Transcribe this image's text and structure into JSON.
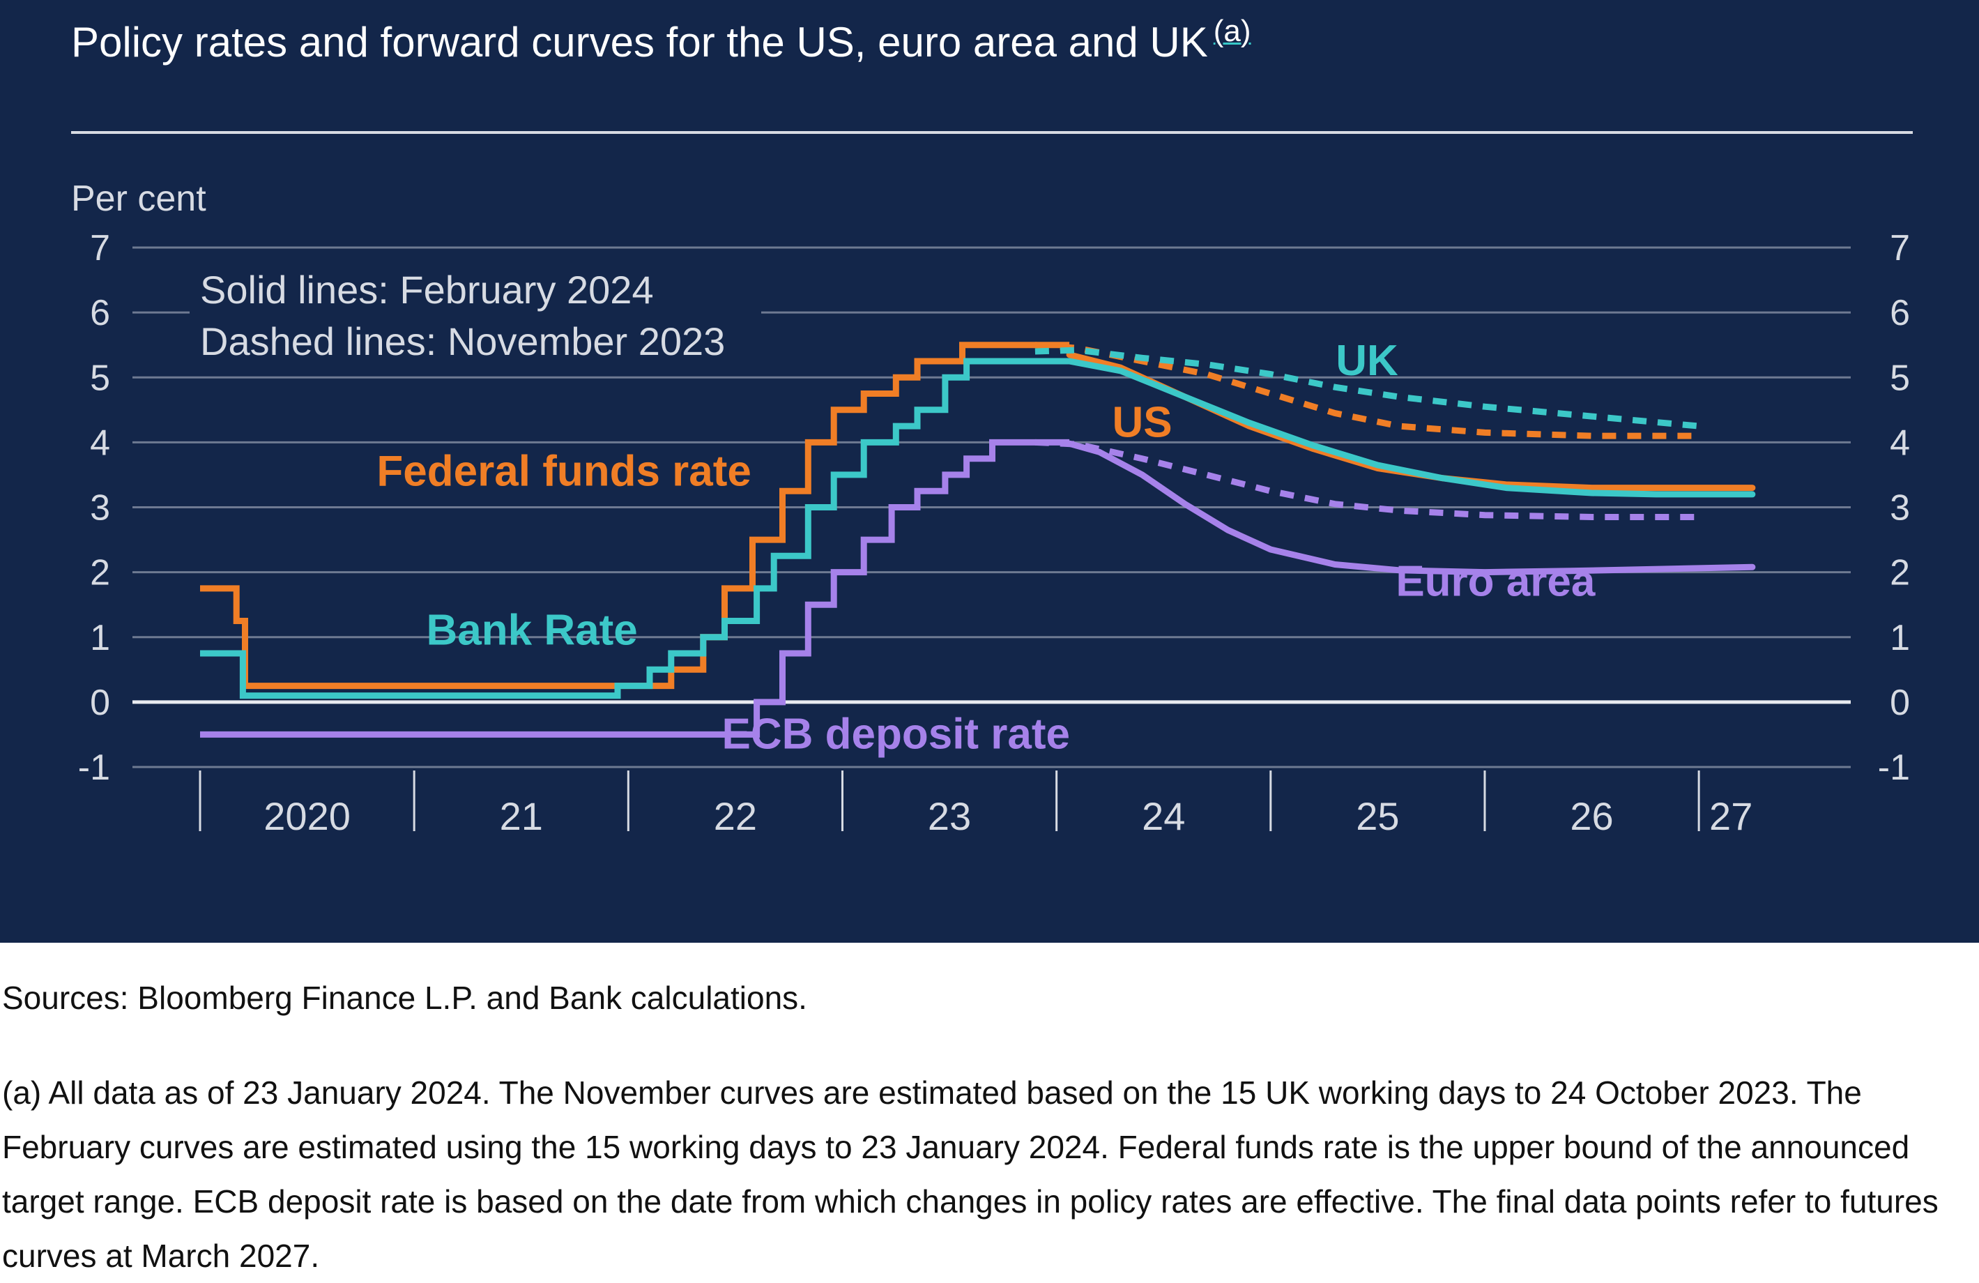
{
  "chart_data": {
    "type": "line",
    "title": "Policy rates and forward curves for the US, euro area and UK",
    "title_footnote_marker": "(a)",
    "ylabel": "Per cent",
    "ylim": [
      -1,
      7
    ],
    "yticks": [
      "7",
      "6",
      "5",
      "4",
      "3",
      "2",
      "1",
      "0",
      "-1"
    ],
    "x_range": [
      2020.0,
      2027.4
    ],
    "x_boundaries": [
      2020.0,
      2021.0,
      2022.0,
      2023.0,
      2024.0,
      2025.0,
      2026.0,
      2027.0
    ],
    "x_tick_labels": [
      {
        "label": "2020",
        "x": 2020.5
      },
      {
        "label": "21",
        "x": 2021.5
      },
      {
        "label": "22",
        "x": 2022.5
      },
      {
        "label": "23",
        "x": 2023.5
      },
      {
        "label": "24",
        "x": 2024.5
      },
      {
        "label": "25",
        "x": 2025.5
      },
      {
        "label": "26",
        "x": 2026.5
      },
      {
        "label": "27",
        "x": 2027.15
      }
    ],
    "legend_note": [
      "Solid lines: February 2024",
      "Dashed lines: November 2023"
    ],
    "colors": {
      "us": "#f07e26",
      "uk": "#3cc8c8",
      "euro": "#a682ea",
      "grid": "#6e7a92",
      "zero": "#e8ebf0",
      "text": "#d7dbe3",
      "background": "#13264a"
    },
    "series": [
      {
        "name": "Federal funds rate",
        "key": "us-history",
        "color_key": "us",
        "style": "step",
        "points": [
          [
            2020.0,
            1.75
          ],
          [
            2020.17,
            1.75
          ],
          [
            2020.17,
            1.25
          ],
          [
            2020.21,
            1.25
          ],
          [
            2020.21,
            0.25
          ],
          [
            2022.2,
            0.25
          ],
          [
            2022.2,
            0.5
          ],
          [
            2022.35,
            0.5
          ],
          [
            2022.35,
            1.0
          ],
          [
            2022.45,
            1.0
          ],
          [
            2022.45,
            1.75
          ],
          [
            2022.58,
            1.75
          ],
          [
            2022.58,
            2.5
          ],
          [
            2022.72,
            2.5
          ],
          [
            2022.72,
            3.25
          ],
          [
            2022.84,
            3.25
          ],
          [
            2022.84,
            4.0
          ],
          [
            2022.96,
            4.0
          ],
          [
            2022.96,
            4.5
          ],
          [
            2023.1,
            4.5
          ],
          [
            2023.1,
            4.75
          ],
          [
            2023.25,
            4.75
          ],
          [
            2023.25,
            5.0
          ],
          [
            2023.35,
            5.0
          ],
          [
            2023.35,
            5.25
          ],
          [
            2023.56,
            5.25
          ],
          [
            2023.56,
            5.5
          ],
          [
            2024.06,
            5.5
          ]
        ]
      },
      {
        "name": "Bank Rate",
        "key": "uk-history",
        "color_key": "uk",
        "style": "step",
        "points": [
          [
            2020.0,
            0.75
          ],
          [
            2020.2,
            0.75
          ],
          [
            2020.2,
            0.1
          ],
          [
            2021.95,
            0.1
          ],
          [
            2021.95,
            0.25
          ],
          [
            2022.1,
            0.25
          ],
          [
            2022.1,
            0.5
          ],
          [
            2022.2,
            0.5
          ],
          [
            2022.2,
            0.75
          ],
          [
            2022.35,
            0.75
          ],
          [
            2022.35,
            1.0
          ],
          [
            2022.45,
            1.0
          ],
          [
            2022.45,
            1.25
          ],
          [
            2022.6,
            1.25
          ],
          [
            2022.6,
            1.75
          ],
          [
            2022.68,
            1.75
          ],
          [
            2022.68,
            2.25
          ],
          [
            2022.84,
            2.25
          ],
          [
            2022.84,
            3.0
          ],
          [
            2022.96,
            3.0
          ],
          [
            2022.96,
            3.5
          ],
          [
            2023.1,
            3.5
          ],
          [
            2023.1,
            4.0
          ],
          [
            2023.25,
            4.0
          ],
          [
            2023.25,
            4.25
          ],
          [
            2023.35,
            4.25
          ],
          [
            2023.35,
            4.5
          ],
          [
            2023.48,
            4.5
          ],
          [
            2023.48,
            5.0
          ],
          [
            2023.58,
            5.0
          ],
          [
            2023.58,
            5.25
          ],
          [
            2024.06,
            5.25
          ]
        ]
      },
      {
        "name": "ECB deposit rate",
        "key": "euro-history",
        "color_key": "euro",
        "style": "step",
        "points": [
          [
            2020.0,
            -0.5
          ],
          [
            2022.6,
            -0.5
          ],
          [
            2022.6,
            0.0
          ],
          [
            2022.72,
            0.0
          ],
          [
            2022.72,
            0.75
          ],
          [
            2022.84,
            0.75
          ],
          [
            2022.84,
            1.5
          ],
          [
            2022.96,
            1.5
          ],
          [
            2022.96,
            2.0
          ],
          [
            2023.1,
            2.0
          ],
          [
            2023.1,
            2.5
          ],
          [
            2023.23,
            2.5
          ],
          [
            2023.23,
            3.0
          ],
          [
            2023.35,
            3.0
          ],
          [
            2023.35,
            3.25
          ],
          [
            2023.48,
            3.25
          ],
          [
            2023.48,
            3.5
          ],
          [
            2023.58,
            3.5
          ],
          [
            2023.58,
            3.75
          ],
          [
            2023.7,
            3.75
          ],
          [
            2023.7,
            4.0
          ],
          [
            2024.06,
            4.0
          ]
        ]
      },
      {
        "name": "US",
        "key": "us-feb",
        "color_key": "us",
        "style": "solid",
        "points": [
          [
            2024.06,
            5.35
          ],
          [
            2024.3,
            5.15
          ],
          [
            2024.6,
            4.7
          ],
          [
            2024.9,
            4.25
          ],
          [
            2025.2,
            3.9
          ],
          [
            2025.5,
            3.6
          ],
          [
            2025.8,
            3.45
          ],
          [
            2026.1,
            3.35
          ],
          [
            2026.5,
            3.3
          ],
          [
            2026.8,
            3.3
          ],
          [
            2027.25,
            3.3
          ]
        ]
      },
      {
        "name": "UK",
        "key": "uk-feb",
        "color_key": "uk",
        "style": "solid",
        "points": [
          [
            2024.06,
            5.25
          ],
          [
            2024.3,
            5.1
          ],
          [
            2024.6,
            4.7
          ],
          [
            2024.9,
            4.3
          ],
          [
            2025.2,
            3.95
          ],
          [
            2025.5,
            3.65
          ],
          [
            2025.8,
            3.45
          ],
          [
            2026.1,
            3.3
          ],
          [
            2026.5,
            3.22
          ],
          [
            2026.8,
            3.2
          ],
          [
            2027.25,
            3.2
          ]
        ]
      },
      {
        "name": "Euro area",
        "key": "euro-feb",
        "color_key": "euro",
        "style": "solid",
        "points": [
          [
            2024.06,
            3.98
          ],
          [
            2024.2,
            3.85
          ],
          [
            2024.4,
            3.5
          ],
          [
            2024.6,
            3.05
          ],
          [
            2024.8,
            2.65
          ],
          [
            2025.0,
            2.35
          ],
          [
            2025.3,
            2.12
          ],
          [
            2025.6,
            2.03
          ],
          [
            2026.0,
            2.0
          ],
          [
            2026.4,
            2.02
          ],
          [
            2027.25,
            2.08
          ]
        ]
      },
      {
        "name": "US (November 2023)",
        "key": "us-nov",
        "color_key": "us",
        "style": "dashed",
        "points": [
          [
            2023.9,
            5.5
          ],
          [
            2024.1,
            5.45
          ],
          [
            2024.4,
            5.25
          ],
          [
            2024.7,
            5.05
          ],
          [
            2025.0,
            4.75
          ],
          [
            2025.3,
            4.45
          ],
          [
            2025.6,
            4.25
          ],
          [
            2026.0,
            4.15
          ],
          [
            2026.5,
            4.1
          ],
          [
            2027.0,
            4.1
          ]
        ]
      },
      {
        "name": "UK (November 2023)",
        "key": "uk-nov",
        "color_key": "uk",
        "style": "dashed",
        "points": [
          [
            2023.9,
            5.4
          ],
          [
            2024.1,
            5.42
          ],
          [
            2024.4,
            5.3
          ],
          [
            2024.7,
            5.2
          ],
          [
            2025.0,
            5.05
          ],
          [
            2025.3,
            4.85
          ],
          [
            2025.6,
            4.7
          ],
          [
            2026.0,
            4.55
          ],
          [
            2026.5,
            4.4
          ],
          [
            2027.0,
            4.25
          ]
        ]
      },
      {
        "name": "Euro area (November 2023)",
        "key": "euro-nov",
        "color_key": "euro",
        "style": "dashed",
        "points": [
          [
            2023.9,
            4.0
          ],
          [
            2024.1,
            3.97
          ],
          [
            2024.4,
            3.75
          ],
          [
            2024.7,
            3.5
          ],
          [
            2025.0,
            3.25
          ],
          [
            2025.3,
            3.05
          ],
          [
            2025.6,
            2.95
          ],
          [
            2026.0,
            2.88
          ],
          [
            2026.5,
            2.85
          ],
          [
            2027.0,
            2.85
          ]
        ]
      }
    ],
    "annotations": [
      {
        "key": "federal-funds-rate-label",
        "text": "Federal funds rate",
        "color_key": "us",
        "x": 2021.7,
        "y": 3.55,
        "anchor": "middle"
      },
      {
        "key": "bank-rate-label",
        "text": "Bank Rate",
        "color_key": "uk",
        "x": 2021.55,
        "y": 1.1,
        "anchor": "middle"
      },
      {
        "key": "ecb-deposit-rate-label",
        "text": "ECB deposit rate",
        "color_key": "euro",
        "x": 2023.25,
        "y": -0.5,
        "anchor": "middle"
      },
      {
        "key": "uk-label",
        "text": "UK",
        "color_key": "uk",
        "x": 2025.45,
        "y": 5.25,
        "anchor": "middle"
      },
      {
        "key": "us-label",
        "text": "US",
        "color_key": "us",
        "x": 2024.4,
        "y": 4.3,
        "anchor": "middle"
      },
      {
        "key": "euro-area-label",
        "text": "Euro area",
        "color_key": "euro",
        "x": 2026.05,
        "y": 1.85,
        "anchor": "middle"
      }
    ]
  },
  "sources": "Sources: Bloomberg Finance L.P. and Bank calculations.",
  "footnote": "(a) All data as of 23 January 2024. The November curves are estimated based on the 15 UK working days to 24 October 2023. The February curves are estimated using the 15 working days to 23 January 2024. Federal funds rate is the upper bound of the announced target range. ECB deposit rate is based on the date from which changes in policy rates are effective. The final data points refer to futures curves at March 2027."
}
